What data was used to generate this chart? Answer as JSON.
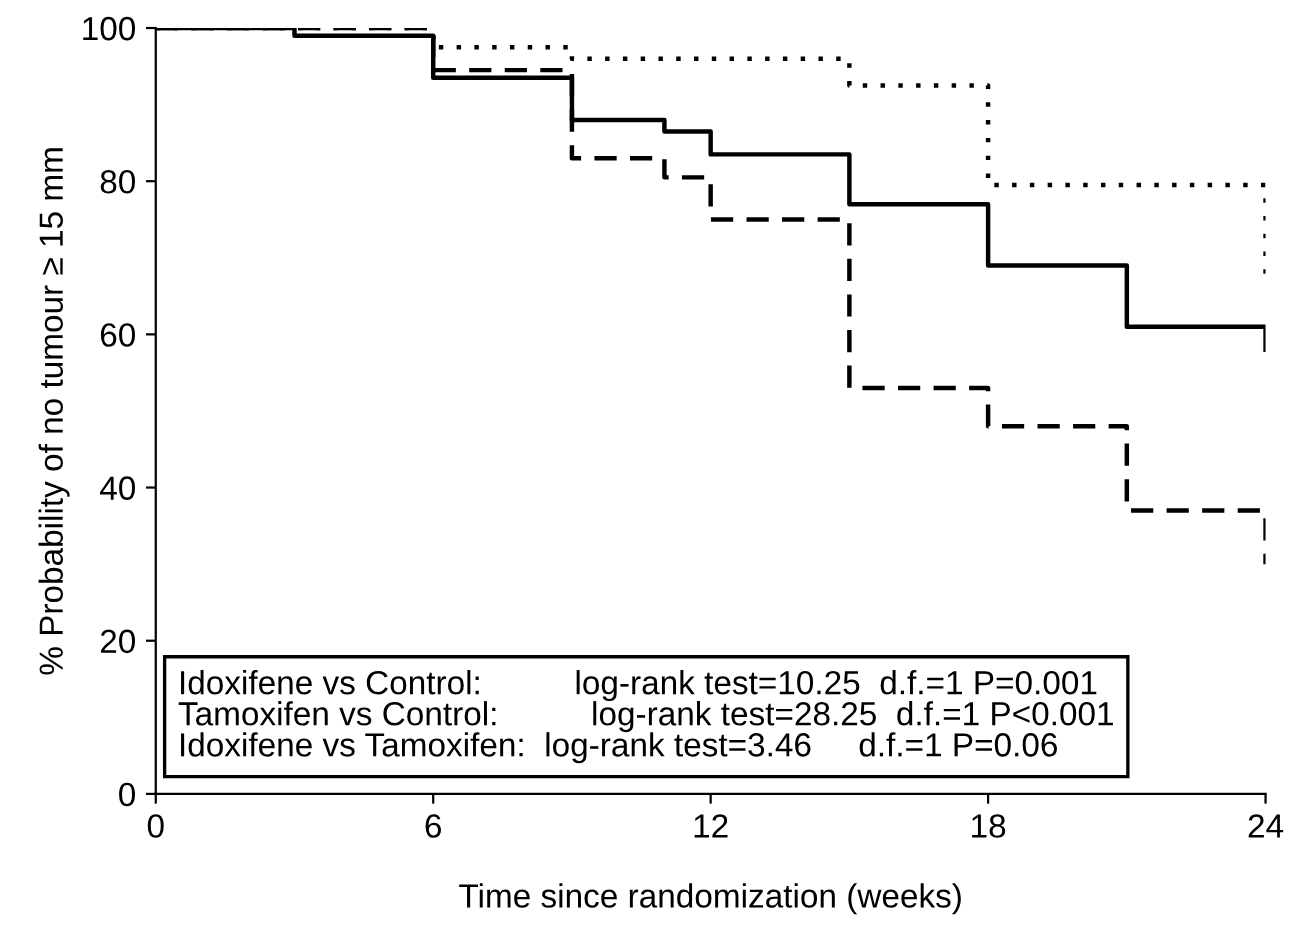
{
  "chart_data": {
    "type": "step",
    "xlabel": "Time since randomization (weeks)",
    "ylabel": "% Probability of no tumour ≥ 15 mm",
    "xlim": [
      0,
      24
    ],
    "xticks": [
      0,
      6,
      12,
      18,
      24
    ],
    "ylim": [
      0,
      100
    ],
    "yticks": [
      0,
      20,
      40,
      60,
      80,
      100
    ],
    "grid": false,
    "legend": false,
    "marker": "none",
    "series": [
      {
        "color": "#000000",
        "line_style": "solid",
        "x": [
          0,
          3,
          6,
          9,
          11,
          12,
          15,
          18,
          21,
          24
        ],
        "values": [
          100,
          99,
          93.5,
          88,
          86.5,
          83.5,
          77,
          69,
          61,
          58
        ]
      },
      {
        "color": "#000000",
        "line_style": "dashed",
        "x": [
          0,
          6,
          9,
          11,
          12,
          15,
          18,
          21,
          24
        ],
        "values": [
          100,
          94.5,
          83,
          80.5,
          75,
          53,
          48,
          37,
          30
        ]
      },
      {
        "color": "#000000",
        "line_style": "dotted",
        "x": [
          0,
          6,
          9,
          15,
          18,
          24
        ],
        "values": [
          100,
          97.5,
          96,
          92.5,
          79.5,
          67
        ]
      }
    ],
    "annotations": [
      "Idoxifene vs Control:          log-rank test=10.25  d.f.=1 P=0.001",
      "Tamoxifen vs Control:          log-rank test=28.25  d.f.=1 P<0.001",
      "Idoxifene vs Tamoxifen:  log-rank test=3.46     d.f.=1 P=0.06"
    ]
  }
}
